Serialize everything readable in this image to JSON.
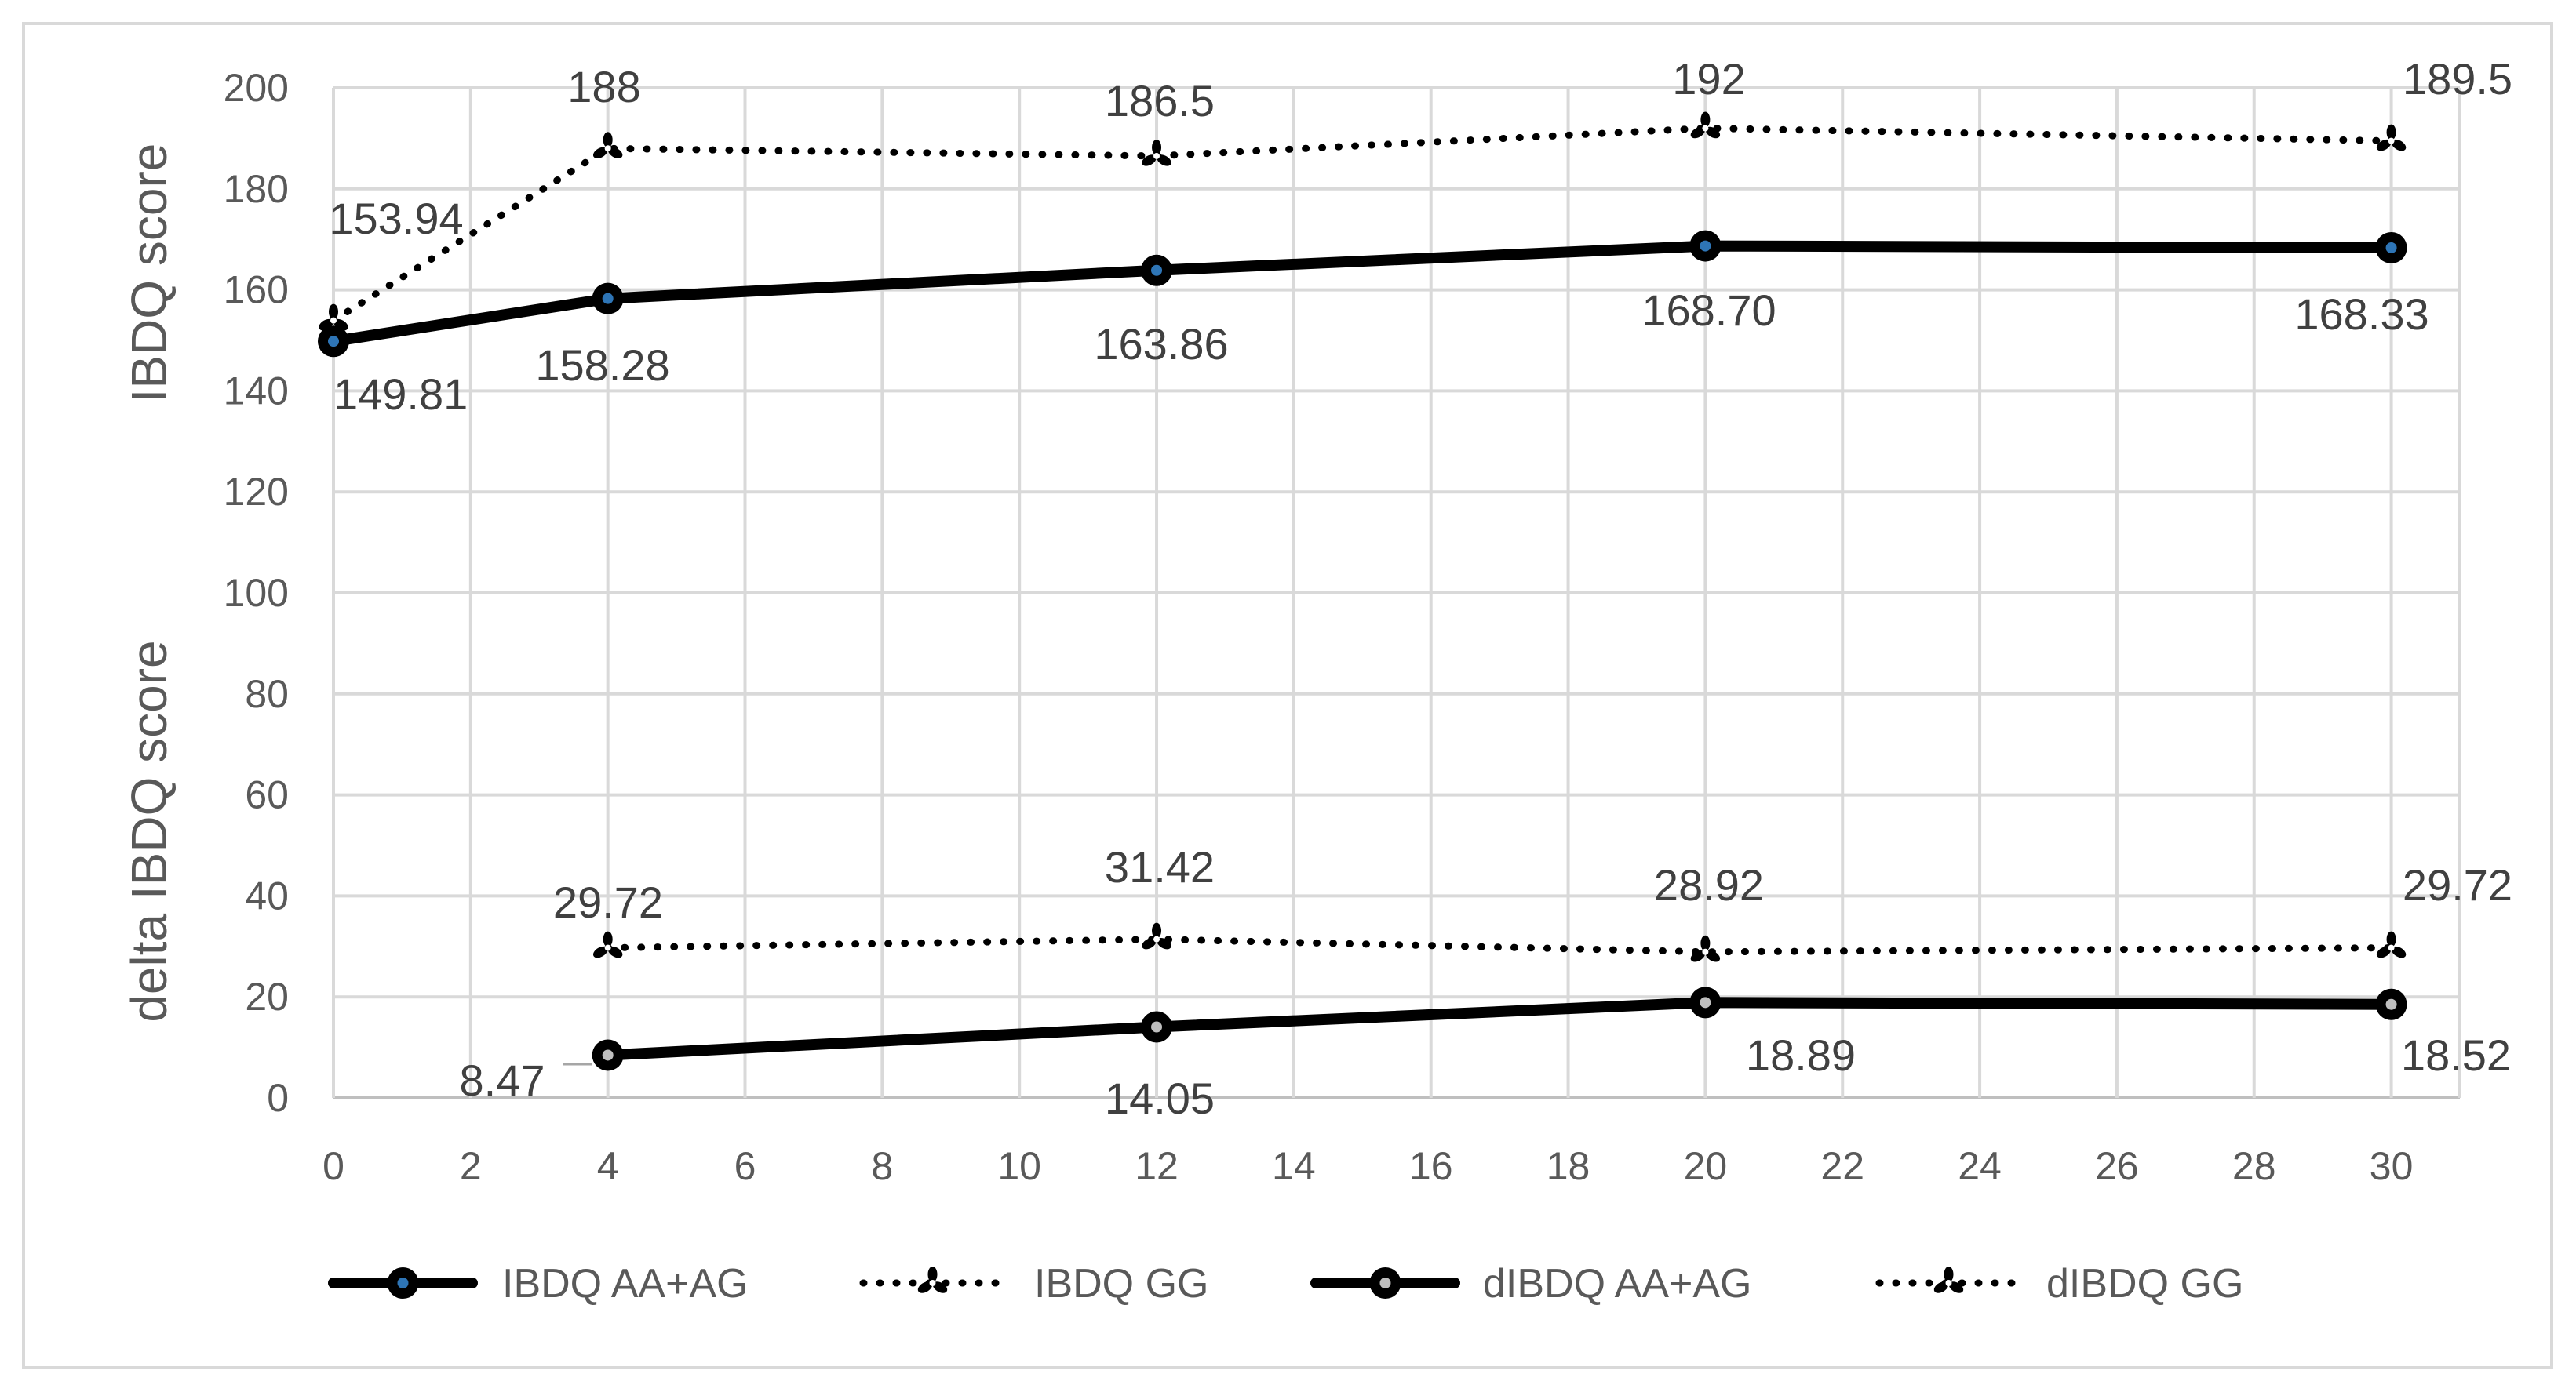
{
  "chart_data": {
    "type": "line",
    "title": "",
    "xlabel": "",
    "ylabel": "IBDQ score",
    "ylabel2": "delta IBDQ score",
    "xlim": [
      0,
      31
    ],
    "ylim": [
      0,
      200
    ],
    "x_ticks": [
      0,
      2,
      4,
      6,
      8,
      10,
      12,
      14,
      16,
      18,
      20,
      22,
      24,
      26,
      28,
      30
    ],
    "y_ticks": [
      0,
      20,
      40,
      60,
      80,
      100,
      120,
      140,
      160,
      180,
      200
    ],
    "grid": true,
    "legend_position": "bottom",
    "series": [
      {
        "name": "IBDQ AA+AG",
        "style": "solid",
        "color": "#000000",
        "marker_center": "#2e75b6",
        "x": [
          0,
          4,
          12,
          20,
          30
        ],
        "values": [
          149.81,
          158.28,
          163.86,
          168.7,
          168.33
        ],
        "labels": [
          "149.81",
          "158.28",
          "163.86",
          "168.70",
          "168.33"
        ]
      },
      {
        "name": "IBDQ GG",
        "style": "dotted",
        "color": "#000000",
        "x": [
          0,
          4,
          12,
          20,
          30
        ],
        "values": [
          153.94,
          188,
          186.5,
          192,
          189.5
        ],
        "labels": [
          "153.94",
          "188",
          "186.5",
          "192",
          "189.5"
        ]
      },
      {
        "name": "dIBDQ AA+AG",
        "style": "solid",
        "color": "#000000",
        "marker_center": "#bfbfbf",
        "x": [
          4,
          12,
          20,
          30
        ],
        "values": [
          8.47,
          14.05,
          18.89,
          18.52
        ],
        "labels": [
          "8.47",
          "14.05",
          "18.89",
          "18.52"
        ]
      },
      {
        "name": "dIBDQ GG",
        "style": "dotted",
        "color": "#000000",
        "x": [
          4,
          12,
          20,
          30
        ],
        "values": [
          29.72,
          31.42,
          28.92,
          29.72
        ],
        "labels": [
          "29.72",
          "31.42",
          "28.92",
          "29.72"
        ]
      }
    ]
  }
}
